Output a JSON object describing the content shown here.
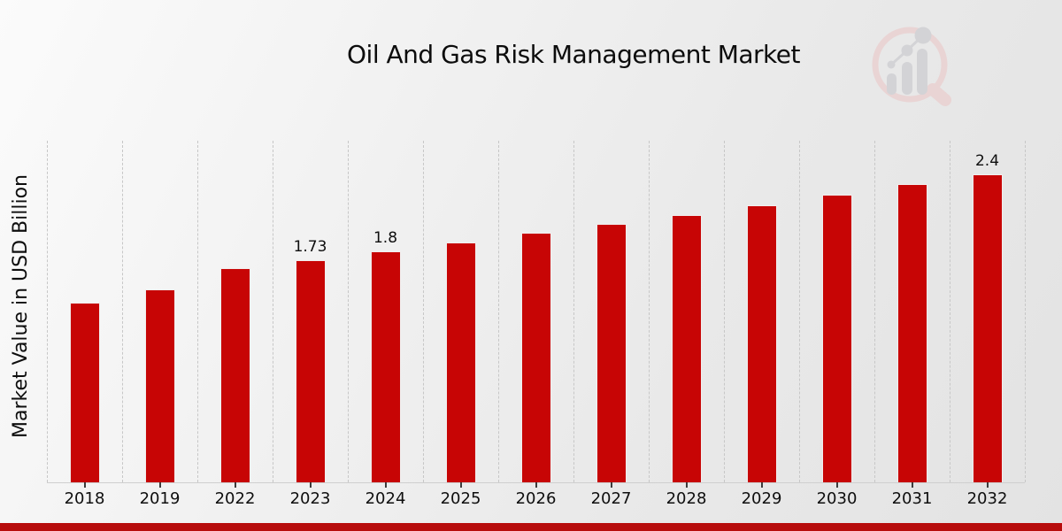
{
  "page": {
    "background_hint": "light diagonal gray gradient",
    "footer_bar_color": "#b70c0c"
  },
  "watermark": {
    "icon": "market-research-future-logo",
    "ring_color": "#e9d4d4",
    "bar_color": "#d3d3d6"
  },
  "chart_data": {
    "type": "bar",
    "title": "Oil And Gas Risk Management Market",
    "xlabel": "",
    "ylabel": "Market Value in USD Billion",
    "categories": [
      "2018",
      "2019",
      "2022",
      "2023",
      "2024",
      "2025",
      "2026",
      "2027",
      "2028",
      "2029",
      "2030",
      "2031",
      "2032"
    ],
    "values": [
      1.4,
      1.5,
      1.67,
      1.73,
      1.8,
      1.87,
      1.94,
      2.01,
      2.08,
      2.16,
      2.24,
      2.32,
      2.4
    ],
    "data_labels": {
      "2023": "1.73",
      "2024": "1.8",
      "2032": "2.4"
    },
    "unit": "USD Billion",
    "bar_color": "#c70505",
    "bar_edge_color": "#f1eded",
    "gridline_color": "#c7c7c7",
    "grid": "vertical-dashed",
    "legend": false,
    "ylim": [
      0,
      2.66
    ]
  }
}
